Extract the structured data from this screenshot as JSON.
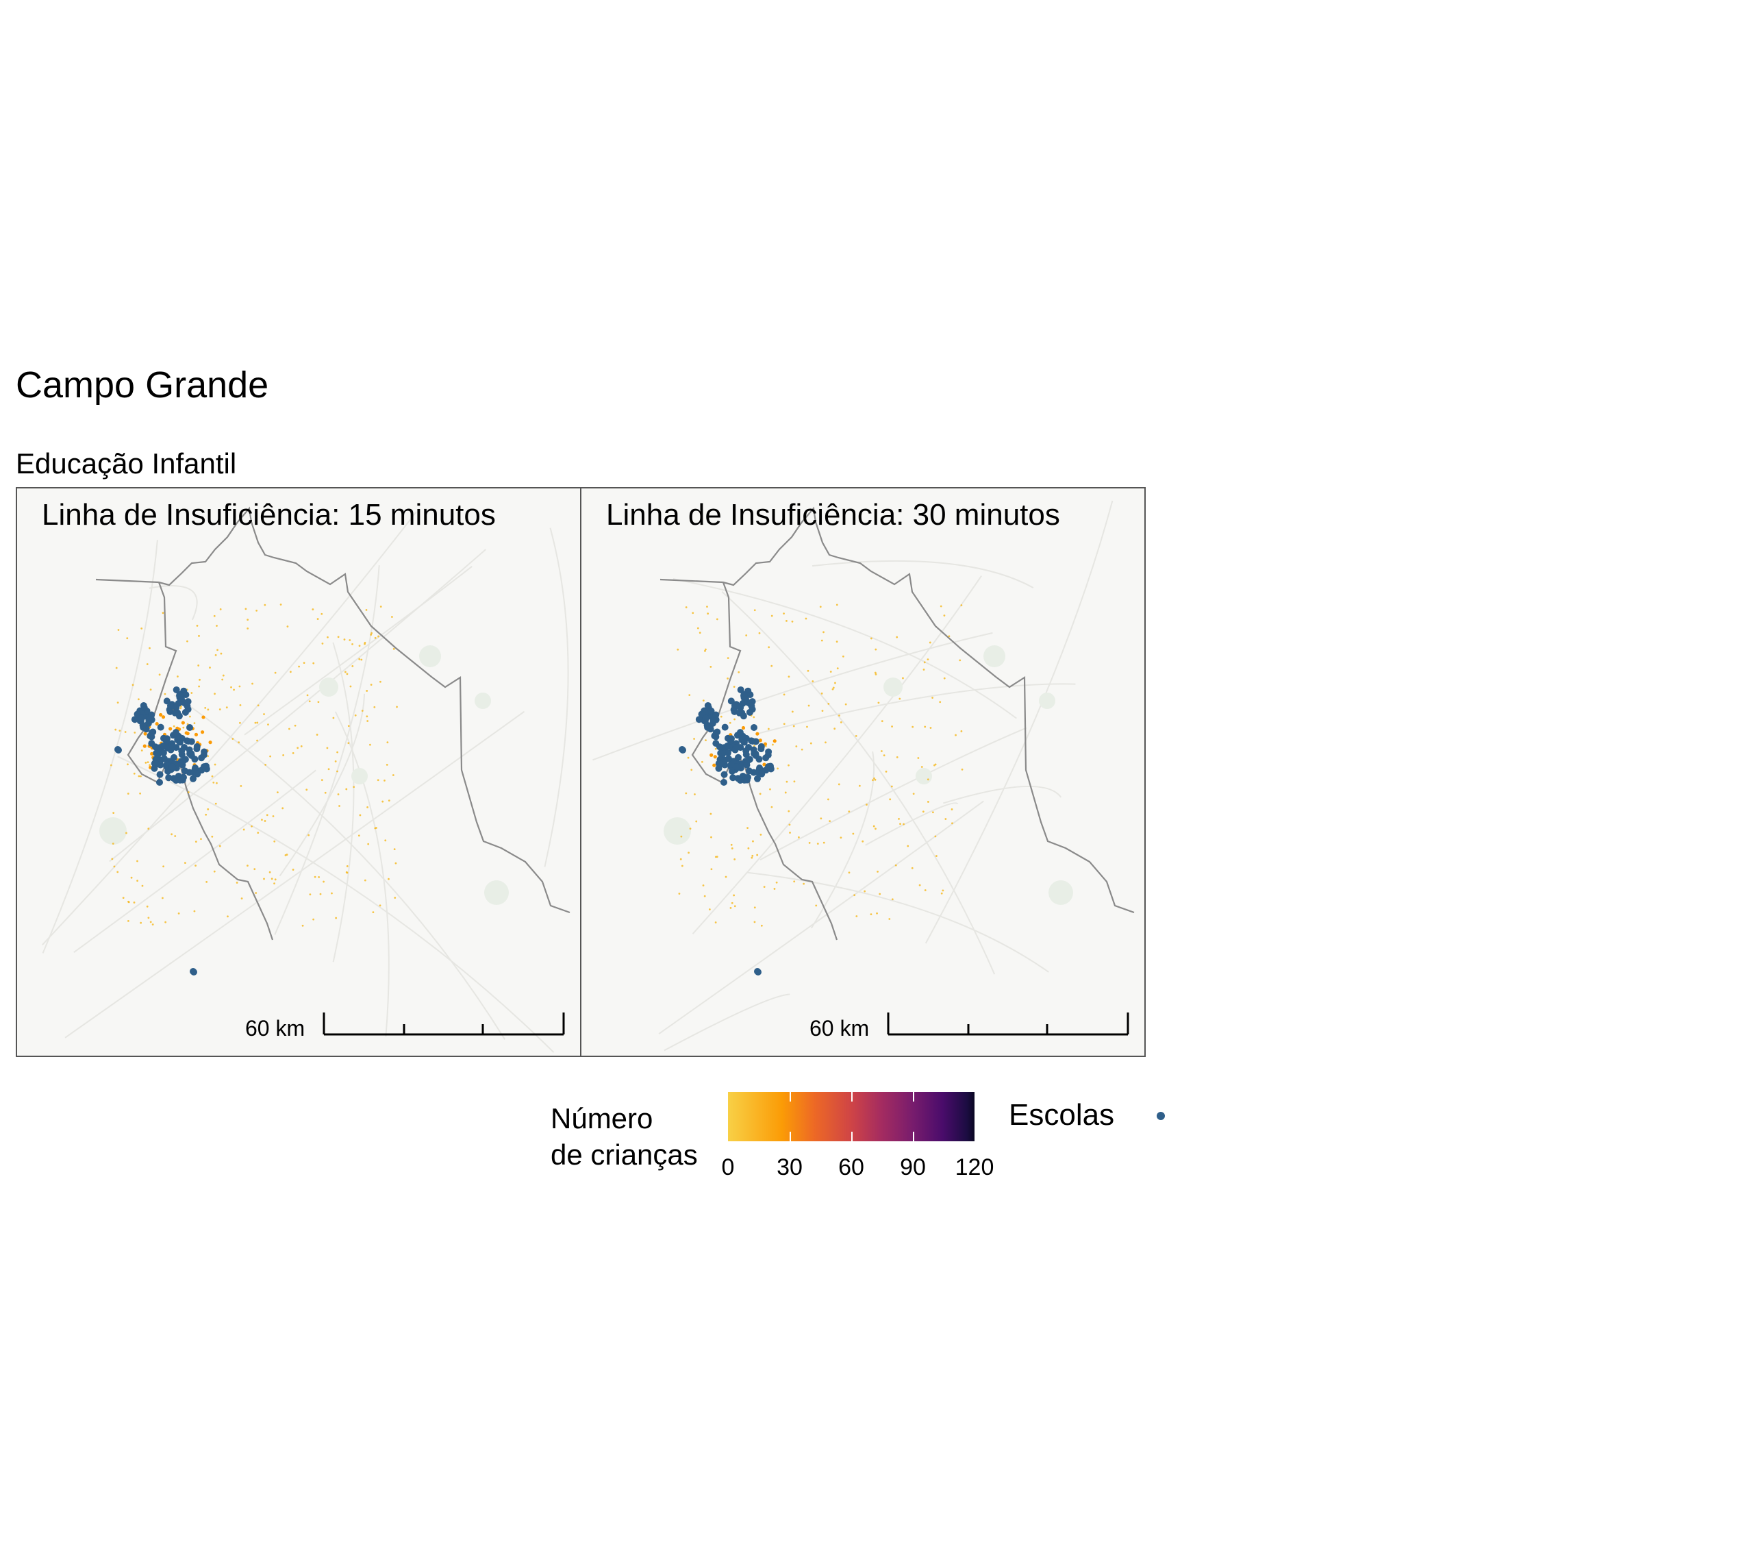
{
  "header": {
    "title": "Campo Grande",
    "subtitle": "Educação Infantil"
  },
  "panels": [
    {
      "title": "Linha de Insuficiência: 15 minutos",
      "scale_label": "60 km"
    },
    {
      "title": "Linha de Insuficiência: 30 minutos",
      "scale_label": "60 km"
    }
  ],
  "legend": {
    "title_lines": [
      "Número",
      "de crianças"
    ],
    "scale_ticks": [
      "0",
      "30",
      "60",
      "90",
      "120"
    ],
    "scale_range": [
      0,
      120
    ],
    "scale_colors": [
      "#f8d046",
      "#fb9b06",
      "#cf4446",
      "#781c6d",
      "#0a0722"
    ],
    "schools_label": "Escolas",
    "schools_color": "#2f5f8a"
  },
  "colors": {
    "basemap": "#f7f7f5",
    "boundary": "#8a8a8a",
    "children_low": "#f5b719",
    "schools": "#2f5f8a"
  }
}
